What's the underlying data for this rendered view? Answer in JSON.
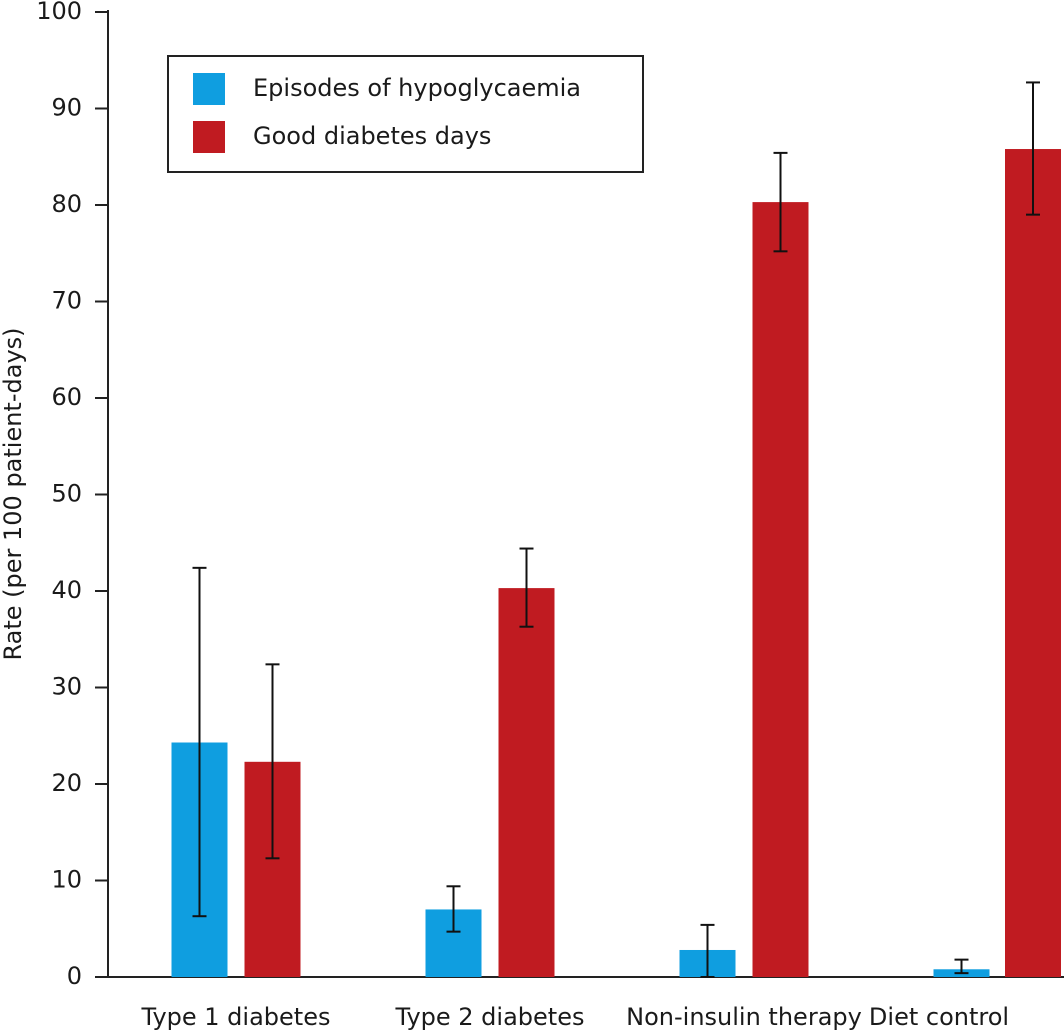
{
  "chart_data": {
    "type": "bar",
    "y_label": "Rate (per 100 patient-days)",
    "categories": [
      "Type 1 diabetes",
      "Type 2 diabetes",
      "Non-insulin therapy",
      "Diet control"
    ],
    "series": [
      {
        "name": "Episodes of hypoglycaemia",
        "color": "#0f9ee0",
        "values": [
          24.3,
          7.0,
          2.8,
          0.8
        ],
        "ci_low": [
          6.3,
          4.7,
          0,
          0.4
        ],
        "ci_high": [
          42.4,
          9.4,
          5.4,
          1.8
        ]
      },
      {
        "name": "Good diabetes days",
        "color": "#c01b21",
        "values": [
          22.3,
          40.3,
          80.3,
          85.8
        ],
        "ci_low": [
          12.3,
          36.3,
          75.2,
          79.0
        ],
        "ci_high": [
          32.4,
          44.4,
          85.4,
          92.7
        ]
      }
    ],
    "ylim": [
      0,
      100
    ],
    "yticks": [
      0,
      10,
      20,
      30,
      40,
      50,
      60,
      70,
      80,
      90,
      100
    ],
    "legend": "upper-left",
    "grid": false
  }
}
